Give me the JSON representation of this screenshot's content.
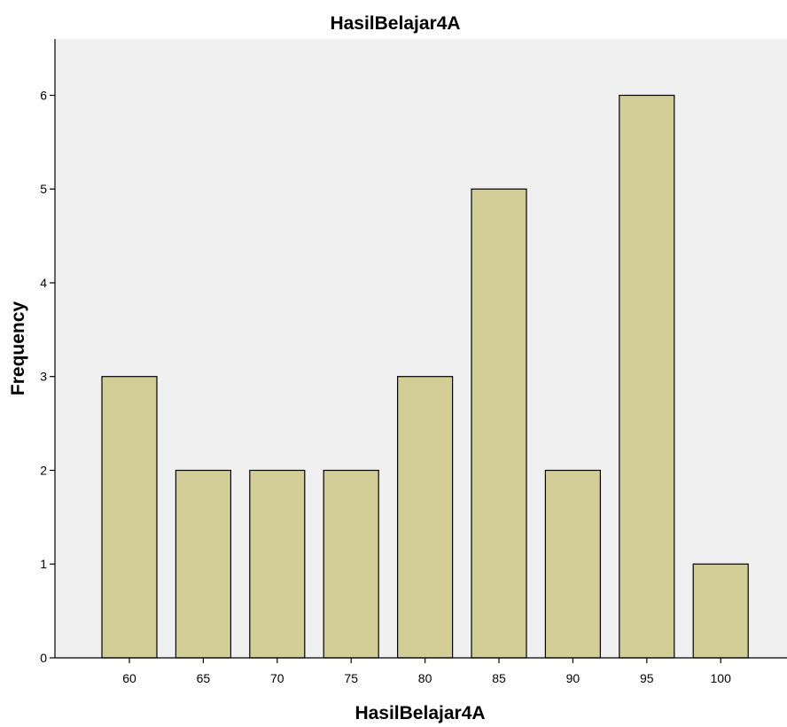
{
  "chart_data": {
    "type": "bar",
    "title": "HasilBelajar4A",
    "xlabel": "HasilBelajar4A",
    "ylabel": "Frequency",
    "categories": [
      "60",
      "65",
      "70",
      "75",
      "80",
      "85",
      "90",
      "95",
      "100"
    ],
    "values": [
      3,
      2,
      2,
      2,
      3,
      5,
      2,
      6,
      1
    ],
    "ylim": [
      0,
      6.6
    ],
    "yticks": [
      0,
      1,
      2,
      3,
      4,
      5,
      6
    ],
    "grid": false,
    "legend": "none",
    "colors": {
      "bar_fill": "#d3ce98",
      "bar_stroke": "#000000",
      "plot_background": "#f0f0f0"
    }
  }
}
